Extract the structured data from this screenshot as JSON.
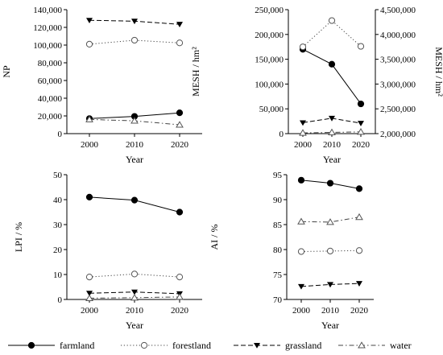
{
  "legend": [
    {
      "series": "farmland",
      "label": "farmland",
      "marker": "circle-filled",
      "line": "solid"
    },
    {
      "series": "forestland",
      "label": "forestland",
      "marker": "circle-open",
      "line": "dotted"
    },
    {
      "series": "grassland",
      "label": "grassland",
      "marker": "triangle-down-filled",
      "line": "dashed"
    },
    {
      "series": "water",
      "label": "water",
      "marker": "triangle-up-open",
      "line": "dash-dot"
    }
  ],
  "chart_data": [
    {
      "type": "line",
      "x": [
        "2000",
        "2010",
        "2020"
      ],
      "xlabel": "Year",
      "ylabel": "NP",
      "ylim": [
        0,
        140000
      ],
      "yticks": [
        "0",
        "20,000",
        "40,000",
        "60,000",
        "80,000",
        "100,000",
        "120,000",
        "140,000"
      ],
      "series": [
        {
          "name": "farmland",
          "values": [
            17000,
            19500,
            23500
          ]
        },
        {
          "name": "forestland",
          "values": [
            101000,
            105500,
            102500
          ]
        },
        {
          "name": "grassland",
          "values": [
            128000,
            127000,
            123500
          ]
        },
        {
          "name": "water",
          "values": [
            16000,
            14500,
            10000
          ]
        }
      ]
    },
    {
      "type": "line",
      "x": [
        "2000",
        "2010",
        "2020"
      ],
      "xlabel": "Year",
      "ylabel": "MESH / hm²",
      "ylabel_right": "MESH / hm²",
      "ylim": [
        0,
        250000
      ],
      "yticks": [
        "0",
        "50,000",
        "100,000",
        "150,000",
        "200,000",
        "250,000"
      ],
      "ylim_right": [
        2000000,
        4500000
      ],
      "yticks_right": [
        "2,000,000",
        "2,500,000",
        "3,000,000",
        "3,500,000",
        "4,000,000",
        "4,500,000"
      ],
      "series": [
        {
          "name": "farmland",
          "axis": "left",
          "values": [
            170000,
            140000,
            60000
          ]
        },
        {
          "name": "forestland",
          "axis": "right",
          "values": [
            3750000,
            4280000,
            3760000
          ]
        },
        {
          "name": "grassland",
          "axis": "left",
          "values": [
            22000,
            31000,
            21000
          ]
        },
        {
          "name": "water",
          "axis": "left",
          "values": [
            1500,
            2500,
            3500
          ]
        }
      ]
    },
    {
      "type": "line",
      "x": [
        "2000",
        "2010",
        "2020"
      ],
      "xlabel": "Year",
      "ylabel": "LPI / %",
      "ylim": [
        0,
        50
      ],
      "yticks": [
        "0",
        "10",
        "20",
        "30",
        "40",
        "50"
      ],
      "series": [
        {
          "name": "farmland",
          "values": [
            41,
            39.8,
            35
          ]
        },
        {
          "name": "forestland",
          "values": [
            9,
            10.2,
            9
          ]
        },
        {
          "name": "grassland",
          "values": [
            2.5,
            3,
            2.3
          ]
        },
        {
          "name": "water",
          "values": [
            0.5,
            0.7,
            1
          ]
        }
      ]
    },
    {
      "type": "line",
      "x": [
        "2000",
        "2010",
        "2020"
      ],
      "xlabel": "Year",
      "ylabel": "AI / %",
      "ylim": [
        70,
        95
      ],
      "yticks": [
        "70",
        "75",
        "80",
        "85",
        "90",
        "95"
      ],
      "series": [
        {
          "name": "farmland",
          "values": [
            93.9,
            93.3,
            92.2
          ]
        },
        {
          "name": "forestland",
          "values": [
            79.6,
            79.7,
            79.8
          ]
        },
        {
          "name": "grassland",
          "values": [
            72.6,
            73,
            73.2
          ]
        },
        {
          "name": "water",
          "values": [
            85.6,
            85.5,
            86.5
          ]
        }
      ]
    }
  ]
}
